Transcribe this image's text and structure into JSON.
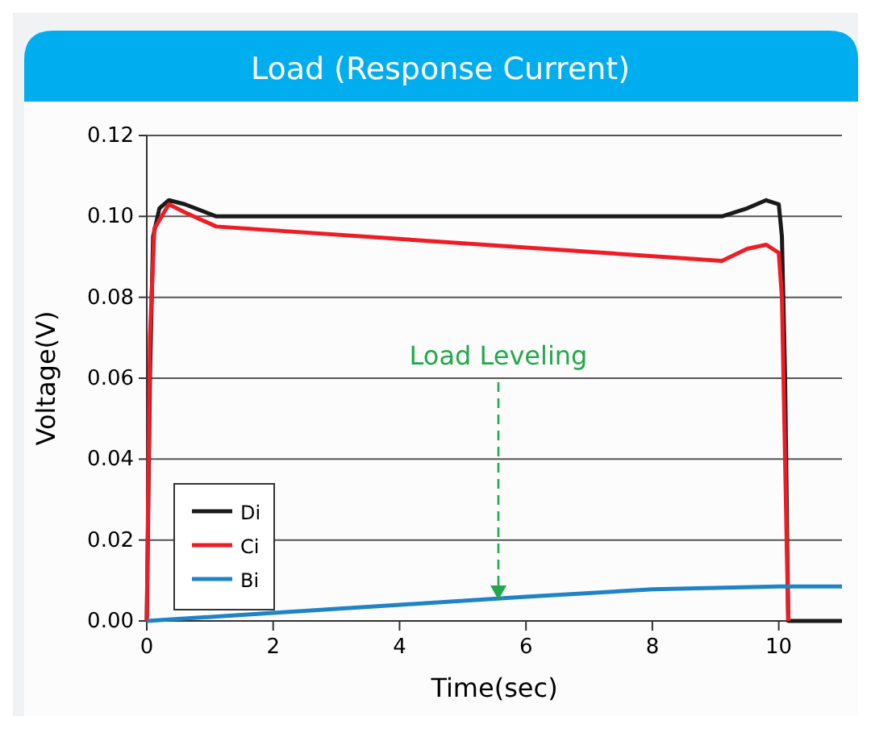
{
  "chart_data": {
    "type": "line",
    "title": "Load (Response Current)",
    "xlabel": "Time(sec)",
    "ylabel": "Voltage(V)",
    "xlim": [
      0,
      11
    ],
    "xticks": [
      0,
      2,
      4,
      6,
      8,
      10
    ],
    "ylim": [
      0,
      0.12
    ],
    "yticks": [
      {
        "value": 0,
        "label": "0.00"
      },
      {
        "value": 0.02,
        "label": "0.02"
      },
      {
        "value": 0.04,
        "label": "0.04"
      },
      {
        "value": 0.06,
        "label": "0.06"
      },
      {
        "value": 0.08,
        "label": "0.08"
      },
      {
        "value": 0.1,
        "label": "0.10"
      },
      {
        "value": 0.12,
        "label": "0.12"
      }
    ],
    "grid": "y",
    "legend": "bottom left",
    "marker": "none",
    "line_style": "solid",
    "annotations": [
      "Load Leveling"
    ],
    "series": [
      {
        "name": "Di",
        "color": "#1a1a1a",
        "x": [
          0,
          0.05,
          0.1,
          0.2,
          0.35,
          0.6,
          1.1,
          9.1,
          9.5,
          9.8,
          10,
          10.05,
          10.1,
          10.15,
          11
        ],
        "values": [
          0,
          0.06,
          0.095,
          0.102,
          0.104,
          0.103,
          0.1,
          0.1,
          0.102,
          0.104,
          0.103,
          0.095,
          0.06,
          0,
          0
        ]
      },
      {
        "name": "Ci",
        "color": "#ee1c25",
        "x": [
          0,
          0.05,
          0.12,
          0.35,
          0.6,
          1.1,
          9.1,
          9.5,
          9.8,
          10,
          10.05,
          10.1,
          10.15
        ],
        "values": [
          0,
          0.07,
          0.097,
          0.103,
          0.101,
          0.0975,
          0.089,
          0.092,
          0.093,
          0.091,
          0.08,
          0.04,
          0
        ]
      },
      {
        "name": "Bi",
        "color": "#1f83c6",
        "x": [
          0,
          2,
          4,
          6,
          8,
          10,
          11
        ],
        "values": [
          0,
          0.002,
          0.004,
          0.006,
          0.0078,
          0.0085,
          0.0085
        ]
      }
    ]
  }
}
